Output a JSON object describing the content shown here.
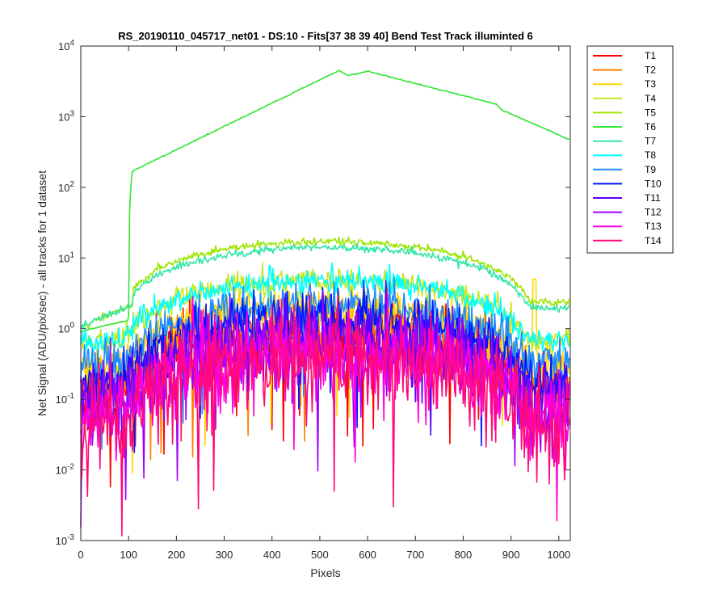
{
  "chart_data": {
    "type": "line",
    "title": "RS_20190110_045717_net01 - DS:10 - Fits[37  38  39  40]   Bend Test       Track illuminted 6",
    "xlabel": "Pixels",
    "ylabel": "Net Signal (ADU/pix/sec) - all tracks for 1 dataset",
    "xlim": [
      0,
      1024
    ],
    "ylim": [
      0.001,
      10000
    ],
    "yscale": "log",
    "xticks": [
      0,
      100,
      200,
      300,
      400,
      500,
      600,
      700,
      800,
      900,
      1000
    ],
    "yticks": [
      {
        "value": 0.001,
        "base": "10",
        "exp": "-3"
      },
      {
        "value": 0.01,
        "base": "10",
        "exp": "-2"
      },
      {
        "value": 0.1,
        "base": "10",
        "exp": "-1"
      },
      {
        "value": 1,
        "base": "10",
        "exp": "0"
      },
      {
        "value": 10,
        "base": "10",
        "exp": "1"
      },
      {
        "value": 100,
        "base": "10",
        "exp": "2"
      },
      {
        "value": 1000,
        "base": "10",
        "exp": "3"
      },
      {
        "value": 10000,
        "base": "10",
        "exp": "4"
      }
    ],
    "grid": false,
    "legend_position": "outside-right",
    "series": [
      {
        "name": "T1",
        "color": "#ff0000",
        "peak": 0.9,
        "noise": 0.55
      },
      {
        "name": "T2",
        "color": "#ff7f00",
        "peak": 1.0,
        "noise": 0.5
      },
      {
        "name": "T3",
        "color": "#ffd700",
        "peak": 2.0,
        "noise": 0.35
      },
      {
        "name": "T4",
        "color": "#c8e61e",
        "peak": 4.8,
        "noise": 0.2
      },
      {
        "name": "T5",
        "color": "#9be600",
        "peak": 17,
        "noise": 0.06
      },
      {
        "name": "T6",
        "color": "#32e632",
        "peak": 4500,
        "noise": 0.01
      },
      {
        "name": "T7",
        "color": "#32e6aa",
        "peak": 14,
        "noise": 0.06
      },
      {
        "name": "T8",
        "color": "#00ffff",
        "peak": 4.7,
        "noise": 0.2
      },
      {
        "name": "T9",
        "color": "#1e8cff",
        "peak": 2.2,
        "noise": 0.35
      },
      {
        "name": "T10",
        "color": "#0014ff",
        "peak": 1.3,
        "noise": 0.45
      },
      {
        "name": "T11",
        "color": "#5a00ff",
        "peak": 0.7,
        "noise": 0.6
      },
      {
        "name": "T12",
        "color": "#a000ff",
        "peak": 0.5,
        "noise": 0.7
      },
      {
        "name": "T13",
        "color": "#ff00dc",
        "peak": 0.45,
        "noise": 0.75
      },
      {
        "name": "T14",
        "color": "#ff0a78",
        "peak": 0.35,
        "noise": 0.8
      }
    ],
    "annotations": [
      {
        "series": "T6",
        "note": "step rise near x=105 to ~170, peak ~4500 near x=540-600, falls to ~450 at x=1024"
      },
      {
        "series": "T3",
        "note": "spike to ~5 near x=950"
      }
    ]
  }
}
